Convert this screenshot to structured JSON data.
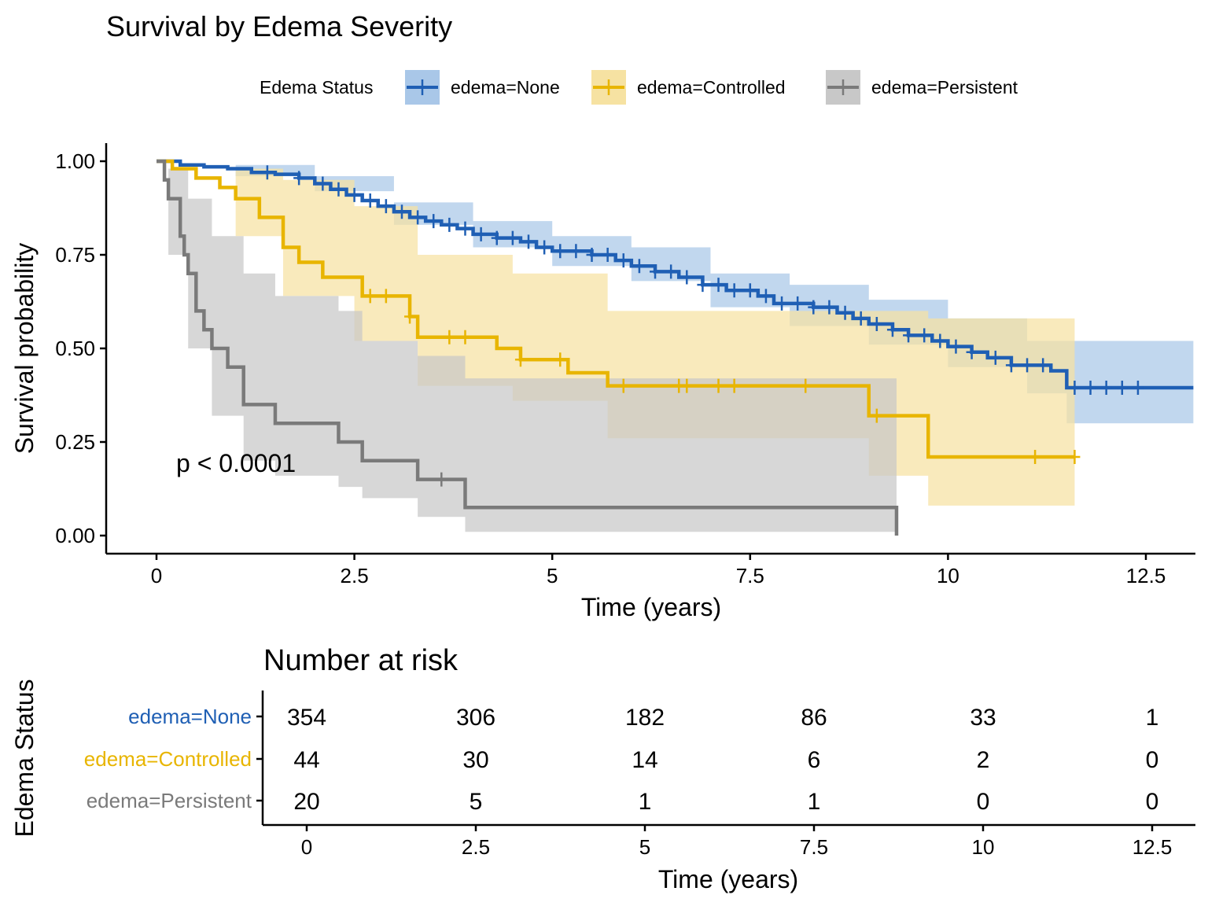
{
  "chart_data": {
    "type": "line",
    "subtype": "kaplan-meier",
    "title": "Survival by Edema Severity",
    "xlabel": "Time (years)",
    "ylabel": "Survival probability",
    "xlim": [
      0,
      13
    ],
    "ylim": [
      0,
      1
    ],
    "x_ticks": [
      0,
      2.5,
      5,
      7.5,
      10,
      12.5
    ],
    "x_tick_labels": [
      "0",
      "2.5",
      "5",
      "7.5",
      "10",
      "12.5"
    ],
    "y_ticks": [
      0,
      0.25,
      0.5,
      0.75,
      1
    ],
    "y_tick_labels": [
      "0.00",
      "0.25",
      "0.50",
      "0.75",
      "1.00"
    ],
    "grid": false,
    "legend_title": "Edema Status",
    "legend_position": "top",
    "annotation": "p < 0.0001",
    "series": [
      {
        "name": "edema=None",
        "color": "#1f5fb4",
        "band_color": "#a9c7e8",
        "steps": [
          [
            0,
            1
          ],
          [
            0.3,
            0.99
          ],
          [
            0.6,
            0.985
          ],
          [
            0.9,
            0.98
          ],
          [
            1.2,
            0.97
          ],
          [
            1.5,
            0.965
          ],
          [
            1.8,
            0.955
          ],
          [
            2.0,
            0.94
          ],
          [
            2.2,
            0.925
          ],
          [
            2.4,
            0.91
          ],
          [
            2.6,
            0.895
          ],
          [
            2.8,
            0.88
          ],
          [
            3.0,
            0.865
          ],
          [
            3.2,
            0.85
          ],
          [
            3.4,
            0.84
          ],
          [
            3.6,
            0.83
          ],
          [
            3.8,
            0.82
          ],
          [
            4.0,
            0.805
          ],
          [
            4.3,
            0.795
          ],
          [
            4.6,
            0.785
          ],
          [
            4.8,
            0.77
          ],
          [
            5.0,
            0.76
          ],
          [
            5.5,
            0.75
          ],
          [
            5.8,
            0.735
          ],
          [
            6.0,
            0.72
          ],
          [
            6.3,
            0.705
          ],
          [
            6.6,
            0.69
          ],
          [
            6.9,
            0.67
          ],
          [
            7.2,
            0.655
          ],
          [
            7.6,
            0.64
          ],
          [
            7.8,
            0.62
          ],
          [
            8.3,
            0.61
          ],
          [
            8.6,
            0.595
          ],
          [
            8.8,
            0.58
          ],
          [
            9.0,
            0.565
          ],
          [
            9.3,
            0.55
          ],
          [
            9.5,
            0.535
          ],
          [
            9.8,
            0.52
          ],
          [
            10.0,
            0.505
          ],
          [
            10.3,
            0.49
          ],
          [
            10.5,
            0.475
          ],
          [
            10.8,
            0.455
          ],
          [
            11.3,
            0.44
          ],
          [
            11.5,
            0.395
          ],
          [
            13.1,
            0.395
          ]
        ],
        "band": [
          [
            0,
            1,
            1
          ],
          [
            1,
            0.96,
            0.99
          ],
          [
            2,
            0.92,
            0.96
          ],
          [
            3,
            0.83,
            0.89
          ],
          [
            4,
            0.77,
            0.84
          ],
          [
            5,
            0.72,
            0.8
          ],
          [
            6,
            0.68,
            0.77
          ],
          [
            7,
            0.61,
            0.7
          ],
          [
            8,
            0.56,
            0.67
          ],
          [
            9,
            0.51,
            0.63
          ],
          [
            10,
            0.45,
            0.58
          ],
          [
            11,
            0.38,
            0.52
          ],
          [
            11.5,
            0.3,
            0.52
          ],
          [
            13.1,
            0.3,
            0.52
          ]
        ],
        "censor_times": [
          1.4,
          1.8,
          2.1,
          2.3,
          2.5,
          2.7,
          2.9,
          3.1,
          3.3,
          3.5,
          3.7,
          3.9,
          4.1,
          4.3,
          4.5,
          4.7,
          4.9,
          5.1,
          5.3,
          5.5,
          5.7,
          5.9,
          6.1,
          6.3,
          6.5,
          6.7,
          6.9,
          7.1,
          7.3,
          7.5,
          7.7,
          7.9,
          8.1,
          8.3,
          8.5,
          8.7,
          8.9,
          9.1,
          9.3,
          9.5,
          9.7,
          9.9,
          10.1,
          10.3,
          10.6,
          10.8,
          11.0,
          11.2,
          11.6,
          11.8,
          12.0,
          12.2,
          12.4
        ]
      },
      {
        "name": "edema=Controlled",
        "color": "#e8b500",
        "band_color": "#f6e2a2",
        "steps": [
          [
            0,
            1
          ],
          [
            0.2,
            0.98
          ],
          [
            0.5,
            0.955
          ],
          [
            0.8,
            0.93
          ],
          [
            1.0,
            0.9
          ],
          [
            1.3,
            0.85
          ],
          [
            1.6,
            0.77
          ],
          [
            1.8,
            0.73
          ],
          [
            2.1,
            0.69
          ],
          [
            2.6,
            0.64
          ],
          [
            3.2,
            0.585
          ],
          [
            3.3,
            0.53
          ],
          [
            4.3,
            0.5
          ],
          [
            4.6,
            0.47
          ],
          [
            5.2,
            0.435
          ],
          [
            5.7,
            0.4
          ],
          [
            9.0,
            0.32
          ],
          [
            9.75,
            0.21
          ],
          [
            11.6,
            0.21
          ]
        ],
        "band": [
          [
            0,
            1,
            1
          ],
          [
            1,
            0.8,
            0.98
          ],
          [
            1.6,
            0.64,
            0.95
          ],
          [
            2.5,
            0.52,
            0.88
          ],
          [
            3.3,
            0.4,
            0.75
          ],
          [
            4.5,
            0.36,
            0.7
          ],
          [
            5.7,
            0.26,
            0.6
          ],
          [
            9.0,
            0.16,
            0.6
          ],
          [
            9.75,
            0.08,
            0.58
          ],
          [
            11.6,
            0.08,
            0.58
          ]
        ],
        "censor_times": [
          2.7,
          2.9,
          3.2,
          3.7,
          3.9,
          4.6,
          5.1,
          5.9,
          6.6,
          6.7,
          7.1,
          7.3,
          8.2,
          9.1,
          11.1,
          11.6
        ]
      },
      {
        "name": "edema=Persistent",
        "color": "#7a7a7a",
        "band_color": "#c8c8c8",
        "steps": [
          [
            0,
            1
          ],
          [
            0.1,
            0.95
          ],
          [
            0.15,
            0.9
          ],
          [
            0.3,
            0.8
          ],
          [
            0.35,
            0.75
          ],
          [
            0.4,
            0.7
          ],
          [
            0.5,
            0.6
          ],
          [
            0.6,
            0.55
          ],
          [
            0.7,
            0.5
          ],
          [
            0.9,
            0.45
          ],
          [
            1.1,
            0.35
          ],
          [
            1.5,
            0.3
          ],
          [
            2.3,
            0.25
          ],
          [
            2.6,
            0.2
          ],
          [
            3.3,
            0.15
          ],
          [
            3.9,
            0.075
          ],
          [
            9.35,
            0.075
          ],
          [
            9.35,
            0.0
          ]
        ],
        "band": [
          [
            0,
            1,
            1
          ],
          [
            0.15,
            0.75,
            0.98
          ],
          [
            0.4,
            0.5,
            0.9
          ],
          [
            0.7,
            0.32,
            0.8
          ],
          [
            1.1,
            0.2,
            0.7
          ],
          [
            1.5,
            0.16,
            0.64
          ],
          [
            2.3,
            0.13,
            0.6
          ],
          [
            2.6,
            0.1,
            0.52
          ],
          [
            3.3,
            0.05,
            0.48
          ],
          [
            3.9,
            0.01,
            0.42
          ],
          [
            9.35,
            0.01,
            0.42
          ]
        ],
        "censor_times": [
          3.6
        ]
      }
    ],
    "risk_table": {
      "title": "Number at risk",
      "ylabel": "Edema Status",
      "xlabel": "Time (years)",
      "x_ticks": [
        0,
        2.5,
        5,
        7.5,
        10,
        12.5
      ],
      "x_tick_labels": [
        "0",
        "2.5",
        "5",
        "7.5",
        "10",
        "12.5"
      ],
      "rows": [
        {
          "name": "edema=None",
          "color": "#1f5fb4",
          "values": [
            "354",
            "306",
            "182",
            "86",
            "33",
            "1"
          ]
        },
        {
          "name": "edema=Controlled",
          "color": "#e8b500",
          "values": [
            "44",
            "30",
            "14",
            "6",
            "2",
            "0"
          ]
        },
        {
          "name": "edema=Persistent",
          "color": "#7a7a7a",
          "values": [
            "20",
            "5",
            "1",
            "1",
            "0",
            "0"
          ]
        }
      ]
    }
  }
}
